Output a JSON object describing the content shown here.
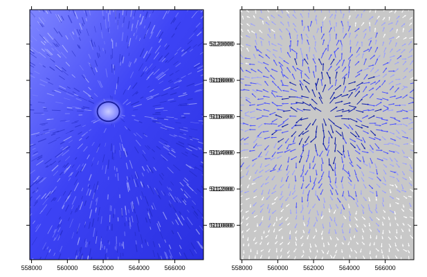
{
  "map": {
    "x_ticks": [
      "558000",
      "560000",
      "562000",
      "564000",
      "566000"
    ],
    "y_ticks": [
      "5110000",
      "5112000",
      "5114000",
      "5116000",
      "5118000",
      "5120000"
    ],
    "x_range": [
      557900,
      567600
    ],
    "y_range": [
      5108100,
      5121900
    ],
    "left_panel": {
      "content": "shaded-relief",
      "base_color": "#3a3ff0"
    },
    "right_panel": {
      "content": "vector-field",
      "background_color": "#c8c8c8",
      "vector_colors": [
        "#ffffff",
        "#9aa0ff",
        "#4a52ff",
        "#0b1aa8"
      ]
    },
    "crater_center": [
      562600,
      5116200
    ]
  }
}
